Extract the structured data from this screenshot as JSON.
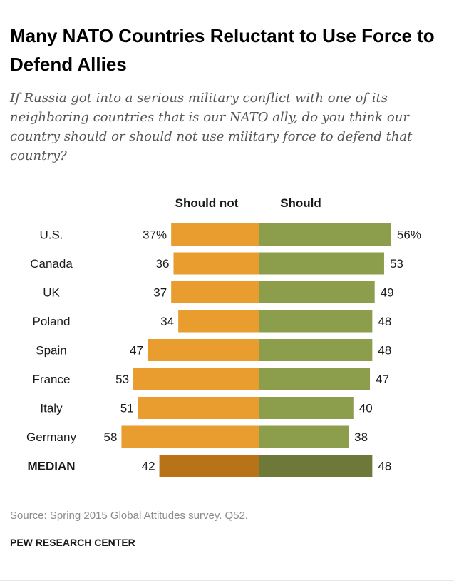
{
  "header": {
    "title": "Many NATO Countries Reluctant to Use Force to Defend Allies",
    "subtitle": "If Russia got into a serious military conflict with one of its neighboring countries that is our NATO ally, do you think our country should or should not use military force to defend that country?"
  },
  "footer": {
    "source": "Source: Spring 2015 Global Attitudes survey. Q52.",
    "credit": "PEW RESEARCH CENTER"
  },
  "colors": {
    "should_not": "#E89D2E",
    "should": "#8C9D4C",
    "median_should_not": "#B87318",
    "median_should": "#6E7838"
  },
  "chart_data": {
    "type": "bar",
    "orientation": "diverging-horizontal",
    "categories": [
      "U.S.",
      "Canada",
      "UK",
      "Poland",
      "Spain",
      "France",
      "Italy",
      "Germany",
      "MEDIAN"
    ],
    "series": [
      {
        "name": "Should not",
        "values": [
          37,
          36,
          37,
          34,
          47,
          53,
          51,
          58,
          42
        ],
        "labels": [
          "37%",
          "36",
          "37",
          "34",
          "47",
          "53",
          "51",
          "58",
          "42"
        ]
      },
      {
        "name": "Should",
        "values": [
          56,
          53,
          49,
          48,
          48,
          47,
          40,
          38,
          48
        ],
        "labels": [
          "56%",
          "53",
          "49",
          "48",
          "48",
          "47",
          "40",
          "38",
          "48"
        ]
      }
    ],
    "highlight_category": "MEDIAN",
    "unit": "%",
    "legend": "top"
  }
}
